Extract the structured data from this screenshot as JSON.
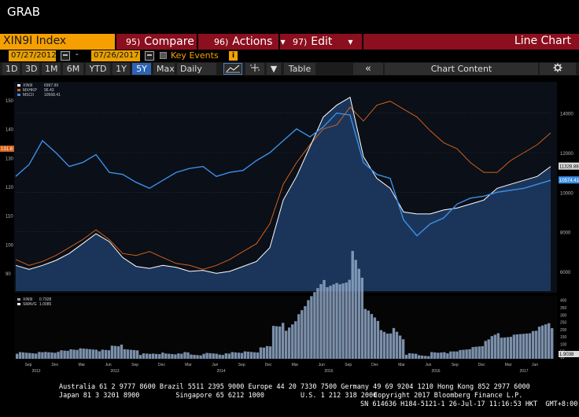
{
  "app": {
    "title": "GRAB"
  },
  "toolbar": {
    "ticker": "XIN9I Index",
    "compare_num": "95)",
    "compare_label": "Compare",
    "actions_num": "96)",
    "actions_label": "Actions",
    "edit_num": "97)",
    "edit_label": "Edit",
    "chart_type": "Line Chart"
  },
  "dates": {
    "start": "07/27/2012",
    "end": "07/26/2017",
    "dash": "-",
    "key_events_label": "Key Events"
  },
  "ranges": [
    {
      "label": "1D",
      "active": false
    },
    {
      "label": "3D",
      "active": false
    },
    {
      "label": "1M",
      "active": false
    },
    {
      "label": "6M",
      "active": false
    },
    {
      "label": "YTD",
      "active": false
    },
    {
      "label": "1Y",
      "active": false
    },
    {
      "label": "5Y",
      "active": true
    },
    {
      "label": "Max",
      "active": false
    }
  ],
  "frequency": "Daily",
  "table_label": "Table",
  "chart_content_label": "Chart Content",
  "icons": {
    "collapse": "double-chevron-left-icon",
    "settings": "gear-icon",
    "line_tool": "line-tool-icon",
    "crosshair": "crosshair-icon",
    "dropdown": "chevron-down-icon",
    "calendar": "calendar-icon"
  },
  "colors": {
    "xin9i": "#ffffff",
    "mxhkp": "#d2601a",
    "mscii": "#3d8fe6",
    "area": "#1e3c66",
    "volume": "#8fa8c8",
    "accent": "#f5a000",
    "menu_bar": "#8b0f1e"
  },
  "chart_data": {
    "type": "line",
    "x_ticks": [
      "Sep",
      "Dec",
      "Mar",
      "Jun",
      "Sep",
      "Dec",
      "Mar",
      "Jun",
      "Sep",
      "Dec",
      "Mar",
      "Jun",
      "Sep",
      "Dec",
      "Mar",
      "Jun",
      "Sep",
      "Dec",
      "Mar",
      "Jun"
    ],
    "year_labels": [
      "2012",
      "2013",
      "2014",
      "2015",
      "2016",
      "2017"
    ],
    "left_axis_ticks": [
      90,
      100,
      110,
      120,
      130,
      140,
      150
    ],
    "right_axis_ticks": [
      6000,
      8000,
      10000,
      12000,
      14000
    ],
    "volume_axis_ticks": [
      10,
      50,
      100,
      150,
      200,
      250,
      300,
      350,
      400
    ],
    "legend": [
      {
        "name": "XIN9I",
        "value": "6997.99"
      },
      {
        "name": "MXHKP",
        "value": "96.43"
      },
      {
        "name": "MSCII",
        "value": "10568.41"
      }
    ],
    "volume_legend": [
      {
        "name": "XIN9I",
        "value": "0.7928"
      },
      {
        "name": "SMAVG",
        "value": "1.0085"
      }
    ],
    "right_labels": {
      "xin9i": "11328.88",
      "mscii": "10574.41",
      "left": "131.8",
      "vol": "1.9038"
    },
    "series": [
      {
        "name": "XIN9I",
        "values": [
          6300,
          6100,
          6300,
          6550,
          6900,
          7400,
          7900,
          7500,
          6700,
          6250,
          6150,
          6300,
          6200,
          6000,
          6050,
          5900,
          6000,
          6250,
          6500,
          7200,
          9600,
          10800,
          12300,
          13800,
          14400,
          14800,
          11800,
          10700,
          10200,
          9000,
          8900,
          8900,
          9100,
          9200,
          9400,
          9600,
          10200,
          10400,
          10600,
          10800,
          11300
        ]
      },
      {
        "name": "MXHKP",
        "values": [
          6600,
          6300,
          6500,
          6800,
          7200,
          7600,
          8100,
          7600,
          6900,
          6800,
          7000,
          6700,
          6400,
          6300,
          6100,
          6300,
          6600,
          7000,
          7400,
          8400,
          10400,
          11500,
          12400,
          13200,
          13400,
          14300,
          13600,
          14400,
          14600,
          14200,
          13800,
          13100,
          12500,
          12200,
          11500,
          11000,
          11000,
          11600,
          12000,
          12400,
          13000
        ]
      },
      {
        "name": "MSCII",
        "values": [
          10800,
          11400,
          12600,
          12000,
          11300,
          11500,
          11900,
          11000,
          10900,
          10500,
          10200,
          10600,
          11000,
          11200,
          11300,
          10800,
          11000,
          11100,
          11600,
          12000,
          12600,
          13200,
          12800,
          13300,
          14000,
          13900,
          11500,
          10900,
          10700,
          8600,
          7800,
          8400,
          8700,
          9400,
          9700,
          9800,
          10000,
          10100,
          10200,
          10400,
          10600
        ]
      }
    ]
  },
  "footer": {
    "line1": "Australia 61 2 9777 8600 Brazil 5511 2395 9000 Europe 44 20 7330 7500 Germany 49 69 9204 1210 Hong Kong 852 2977 6000",
    "line2": "Japan 81 3 3201 8900         Singapore 65 6212 1000         U.S. 1 212 318 2000",
    "line2r": "Copyright 2017 Bloomberg Finance L.P.",
    "line3": "SN 614636 H184-5121-1 26-Jul-17 11:16:53 HKT  GMT+8:00"
  }
}
